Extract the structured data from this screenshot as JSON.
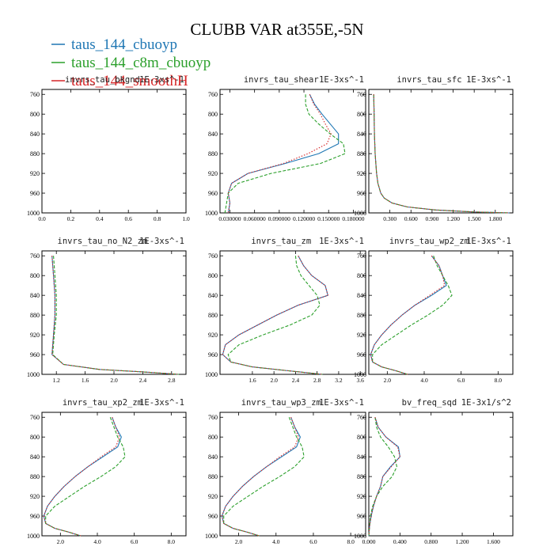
{
  "title": "CLUBB VAR at355E,-5N",
  "legend": [
    {
      "label": "taus_144_cbuoyp",
      "color": "#1f77b4"
    },
    {
      "label": "taus_144_c8m_cbuoyp",
      "color": "#2ca02c"
    },
    {
      "label": "taus_144_smoothH",
      "color": "#d62728"
    }
  ],
  "series_styles": [
    "solid",
    "dashed",
    "dotted"
  ],
  "chart_data": [
    {
      "type": "line",
      "title": "invrs_tau_bkgnd",
      "units": "1E-3xs^-1",
      "xlim": [
        0,
        1
      ],
      "ylim": [
        1000,
        750
      ],
      "xticks": [
        0,
        0.2,
        0.4,
        0.6,
        0.8,
        1.0
      ],
      "xticklabels": [
        "0.0",
        "0.2",
        "0.4",
        "0.6",
        "0.8",
        "1.0"
      ],
      "yticks": [
        760,
        800,
        840,
        880,
        920,
        960,
        1000
      ],
      "yticklabels": [
        "760",
        "800",
        "840",
        "880",
        "920",
        "960",
        "1000"
      ],
      "y": [],
      "series": [
        {
          "name": "taus_144_cbuoyp",
          "values": []
        },
        {
          "name": "taus_144_c8m_cbuoyp",
          "values": []
        },
        {
          "name": "taus_144_smoothH",
          "values": []
        }
      ]
    },
    {
      "type": "line",
      "title": "invrs_tau_shear",
      "units": "1E-3xs^-1",
      "xlim": [
        0.018,
        0.195
      ],
      "ylim": [
        1000,
        750
      ],
      "xticks": [
        0.03,
        0.06,
        0.09,
        0.12,
        0.15,
        0.18
      ],
      "xticklabels": [
        "0.030000",
        "0.060000",
        "0.090000",
        "0.120000",
        "0.150000",
        "0.180000"
      ],
      "yticks": [
        760,
        800,
        840,
        880,
        920,
        960,
        1000
      ],
      "yticklabels": [
        "760",
        "800",
        "840",
        "880",
        "920",
        "960",
        "1000"
      ],
      "y": [
        760,
        780,
        800,
        820,
        840,
        860,
        880,
        900,
        920,
        940,
        960,
        980,
        1000
      ],
      "series": [
        {
          "name": "taus_144_cbuoyp",
          "values": [
            0.127,
            0.133,
            0.142,
            0.152,
            0.162,
            0.162,
            0.138,
            0.097,
            0.052,
            0.032,
            0.028,
            0.03,
            0.028
          ]
        },
        {
          "name": "taus_144_c8m_cbuoyp",
          "values": [
            0.122,
            0.122,
            0.126,
            0.138,
            0.152,
            0.168,
            0.17,
            0.14,
            0.08,
            0.04,
            0.028,
            0.026,
            0.024
          ]
        },
        {
          "name": "taus_144_smoothH",
          "values": [
            0.127,
            0.132,
            0.14,
            0.146,
            0.153,
            0.148,
            0.125,
            0.095,
            0.052,
            0.032,
            0.028,
            0.03,
            0.028
          ]
        }
      ]
    },
    {
      "type": "line",
      "title": "invrs_tau_sfc",
      "units": "1E-3xs^-1",
      "xlim": [
        0,
        2.05
      ],
      "ylim": [
        1000,
        750
      ],
      "xticks": [
        0.3,
        0.6,
        0.9,
        1.2,
        1.5,
        1.8
      ],
      "xticklabels": [
        "0.300",
        "0.600",
        "0.900",
        "1.200",
        "1.500",
        "1.800"
      ],
      "yticks": [
        760,
        800,
        840,
        880,
        920,
        960,
        1000
      ],
      "yticklabels": [
        "760",
        "800",
        "840",
        "880",
        "920",
        "960",
        "1000"
      ],
      "y": [
        760,
        800,
        840,
        880,
        920,
        940,
        960,
        970,
        980,
        988,
        994,
        998,
        1000
      ],
      "series": [
        {
          "name": "taus_144_cbuoyp",
          "values": [
            0.07,
            0.075,
            0.08,
            0.09,
            0.11,
            0.13,
            0.17,
            0.22,
            0.33,
            0.55,
            0.95,
            1.5,
            2.0
          ]
        },
        {
          "name": "taus_144_c8m_cbuoyp",
          "values": [
            0.07,
            0.075,
            0.08,
            0.09,
            0.11,
            0.13,
            0.17,
            0.22,
            0.33,
            0.55,
            0.95,
            1.5,
            2.0
          ]
        },
        {
          "name": "taus_144_smoothH",
          "values": [
            0.07,
            0.075,
            0.08,
            0.09,
            0.11,
            0.13,
            0.17,
            0.22,
            0.33,
            0.55,
            0.95,
            1.5,
            2.0
          ]
        }
      ]
    },
    {
      "type": "line",
      "title": "invrs_tau_no_N2_zm",
      "units": "1E-3xs^-1",
      "xlim": [
        1.0,
        3.0
      ],
      "ylim": [
        1000,
        750
      ],
      "xticks": [
        1.2,
        1.6,
        2.0,
        2.4,
        2.8
      ],
      "xticklabels": [
        "1.2",
        "1.6",
        "2.0",
        "2.4",
        "2.8"
      ],
      "yticks": [
        760,
        800,
        840,
        880,
        920,
        960,
        1000
      ],
      "yticklabels": [
        "760",
        "800",
        "840",
        "880",
        "920",
        "960",
        "1000"
      ],
      "y": [
        760,
        800,
        840,
        880,
        920,
        960,
        980,
        990,
        995,
        1000
      ],
      "series": [
        {
          "name": "taus_144_cbuoyp",
          "values": [
            1.14,
            1.16,
            1.18,
            1.18,
            1.16,
            1.14,
            1.3,
            1.8,
            2.4,
            2.9
          ]
        },
        {
          "name": "taus_144_c8m_cbuoyp",
          "values": [
            1.16,
            1.18,
            1.2,
            1.2,
            1.17,
            1.15,
            1.3,
            1.8,
            2.4,
            2.9
          ]
        },
        {
          "name": "taus_144_smoothH",
          "values": [
            1.14,
            1.16,
            1.18,
            1.18,
            1.16,
            1.14,
            1.3,
            1.8,
            2.4,
            2.9
          ]
        }
      ]
    },
    {
      "type": "line",
      "title": "invrs_tau_zm",
      "units": "1E-3xs^-1",
      "xlim": [
        1.0,
        3.7
      ],
      "ylim": [
        1000,
        750
      ],
      "xticks": [
        1.6,
        2.0,
        2.4,
        2.8,
        3.2,
        3.6
      ],
      "xticklabels": [
        "1.6",
        "2.0",
        "2.4",
        "2.8",
        "3.2",
        "3.6"
      ],
      "yticks": [
        760,
        800,
        840,
        880,
        920,
        960,
        1000
      ],
      "yticklabels": [
        "760",
        "800",
        "840",
        "880",
        "920",
        "960",
        "1000"
      ],
      "y": [
        760,
        780,
        800,
        820,
        840,
        860,
        880,
        900,
        920,
        940,
        960,
        975,
        985,
        992,
        1000
      ],
      "series": [
        {
          "name": "taus_144_cbuoyp",
          "values": [
            2.45,
            2.55,
            2.7,
            2.95,
            3.0,
            2.45,
            2.05,
            1.7,
            1.35,
            1.1,
            1.05,
            1.2,
            1.6,
            2.2,
            2.9
          ]
        },
        {
          "name": "taus_144_c8m_cbuoyp",
          "values": [
            2.4,
            2.42,
            2.5,
            2.65,
            2.8,
            2.85,
            2.7,
            2.3,
            1.8,
            1.35,
            1.15,
            1.2,
            1.6,
            2.2,
            2.9
          ]
        },
        {
          "name": "taus_144_smoothH",
          "values": [
            2.45,
            2.55,
            2.7,
            2.95,
            3.0,
            2.45,
            2.05,
            1.7,
            1.35,
            1.1,
            1.05,
            1.2,
            1.6,
            2.2,
            2.9
          ]
        }
      ]
    },
    {
      "type": "line",
      "title": "invrs_tau_wp2_zm",
      "units": "1E-3xs^-1",
      "xlim": [
        1.0,
        8.8
      ],
      "ylim": [
        1000,
        750
      ],
      "xticks": [
        2,
        4,
        6,
        8
      ],
      "xticklabels": [
        "2.0",
        "4.0",
        "6.0",
        "8.0"
      ],
      "yticks": [
        760,
        800,
        840,
        880,
        920,
        960,
        1000
      ],
      "yticklabels": [
        "760",
        "800",
        "840",
        "880",
        "920",
        "960",
        "1000"
      ],
      "y": [
        760,
        780,
        800,
        820,
        840,
        860,
        880,
        900,
        920,
        940,
        960,
        975,
        985,
        992,
        1000
      ],
      "series": [
        {
          "name": "taus_144_cbuoyp",
          "values": [
            4.4,
            4.8,
            5.0,
            5.2,
            4.4,
            3.5,
            2.8,
            2.2,
            1.7,
            1.3,
            1.1,
            1.2,
            1.7,
            2.4,
            3.1
          ]
        },
        {
          "name": "taus_144_c8m_cbuoyp",
          "values": [
            4.5,
            4.7,
            5.0,
            5.3,
            5.5,
            5.0,
            4.2,
            3.3,
            2.5,
            1.7,
            1.2,
            1.2,
            1.7,
            2.4,
            3.1
          ]
        },
        {
          "name": "taus_144_smoothH",
          "values": [
            4.4,
            4.8,
            5.0,
            5.1,
            4.3,
            3.5,
            2.8,
            2.2,
            1.7,
            1.3,
            1.1,
            1.2,
            1.7,
            2.4,
            3.1
          ]
        }
      ]
    },
    {
      "type": "line",
      "title": "invrs_tau_xp2_zm",
      "units": "1E-3xs^-1",
      "xlim": [
        1.0,
        8.8
      ],
      "ylim": [
        1000,
        750
      ],
      "xticks": [
        2,
        4,
        6,
        8
      ],
      "xticklabels": [
        "2.0",
        "4.0",
        "6.0",
        "8.0"
      ],
      "yticks": [
        760,
        800,
        840,
        880,
        920,
        960,
        1000
      ],
      "yticklabels": [
        "760",
        "800",
        "840",
        "880",
        "920",
        "960",
        "1000"
      ],
      "y": [
        760,
        780,
        800,
        820,
        840,
        860,
        880,
        900,
        920,
        940,
        960,
        975,
        985,
        992,
        1000
      ],
      "series": [
        {
          "name": "taus_144_cbuoyp",
          "values": [
            4.8,
            5.0,
            5.3,
            5.1,
            4.3,
            3.5,
            2.8,
            2.2,
            1.7,
            1.3,
            1.1,
            1.2,
            1.7,
            2.4,
            3.1
          ]
        },
        {
          "name": "taus_144_c8m_cbuoyp",
          "values": [
            4.7,
            4.9,
            5.1,
            5.4,
            5.5,
            5.0,
            4.2,
            3.3,
            2.5,
            1.7,
            1.2,
            1.2,
            1.7,
            2.4,
            3.1
          ]
        },
        {
          "name": "taus_144_smoothH",
          "values": [
            4.8,
            5.0,
            5.2,
            5.0,
            4.2,
            3.5,
            2.8,
            2.2,
            1.7,
            1.3,
            1.1,
            1.2,
            1.7,
            2.4,
            3.1
          ]
        }
      ]
    },
    {
      "type": "line",
      "title": "invrs_tau_wp3_zm",
      "units": "1E-3xs^-1",
      "xlim": [
        1.0,
        8.8
      ],
      "ylim": [
        1000,
        750
      ],
      "xticks": [
        2,
        4,
        6,
        8
      ],
      "xticklabels": [
        "2.0",
        "4.0",
        "6.0",
        "8.0"
      ],
      "yticks": [
        760,
        800,
        840,
        880,
        920,
        960,
        1000
      ],
      "yticklabels": [
        "760",
        "800",
        "840",
        "880",
        "920",
        "960",
        "1000"
      ],
      "y": [
        760,
        780,
        800,
        820,
        840,
        860,
        880,
        900,
        920,
        940,
        960,
        975,
        985,
        992,
        1000
      ],
      "series": [
        {
          "name": "taus_144_cbuoyp",
          "values": [
            4.8,
            5.0,
            5.3,
            5.1,
            4.3,
            3.5,
            2.8,
            2.2,
            1.7,
            1.3,
            1.1,
            1.2,
            1.7,
            2.4,
            3.1
          ]
        },
        {
          "name": "taus_144_c8m_cbuoyp",
          "values": [
            4.7,
            4.9,
            5.1,
            5.4,
            5.5,
            5.0,
            4.2,
            3.3,
            2.5,
            1.7,
            1.2,
            1.2,
            1.7,
            2.4,
            3.1
          ]
        },
        {
          "name": "taus_144_smoothH",
          "values": [
            4.8,
            5.0,
            5.2,
            5.0,
            4.2,
            3.5,
            2.8,
            2.2,
            1.7,
            1.3,
            1.1,
            1.2,
            1.7,
            2.4,
            3.1
          ]
        }
      ]
    },
    {
      "type": "line",
      "title": "bv_freq_sqd",
      "units": "1E-3x1/s^2",
      "xlim": [
        0,
        1.85
      ],
      "ylim": [
        1000,
        750
      ],
      "xticks": [
        0,
        0.4,
        0.8,
        1.2,
        1.6
      ],
      "xticklabels": [
        "0.000",
        "0.400",
        "0.800",
        "1.200",
        "1.600"
      ],
      "yticks": [
        760,
        800,
        840,
        880,
        920,
        960,
        1000
      ],
      "yticklabels": [
        "760",
        "800",
        "840",
        "880",
        "920",
        "960",
        "1000"
      ],
      "y": [
        760,
        780,
        800,
        820,
        840,
        860,
        880,
        900,
        920,
        940,
        960,
        980,
        1000
      ],
      "series": [
        {
          "name": "taus_144_cbuoyp",
          "values": [
            0.08,
            0.12,
            0.22,
            0.38,
            0.4,
            0.28,
            0.18,
            0.15,
            0.1,
            0.06,
            0.03,
            0.01,
            0.0
          ]
        },
        {
          "name": "taus_144_c8m_cbuoyp",
          "values": [
            0.08,
            0.1,
            0.15,
            0.25,
            0.33,
            0.36,
            0.3,
            0.18,
            0.1,
            0.05,
            0.02,
            0.01,
            0.0
          ]
        },
        {
          "name": "taus_144_smoothH",
          "values": [
            0.08,
            0.12,
            0.22,
            0.37,
            0.4,
            0.29,
            0.18,
            0.15,
            0.1,
            0.06,
            0.03,
            0.01,
            0.0
          ]
        }
      ]
    }
  ]
}
